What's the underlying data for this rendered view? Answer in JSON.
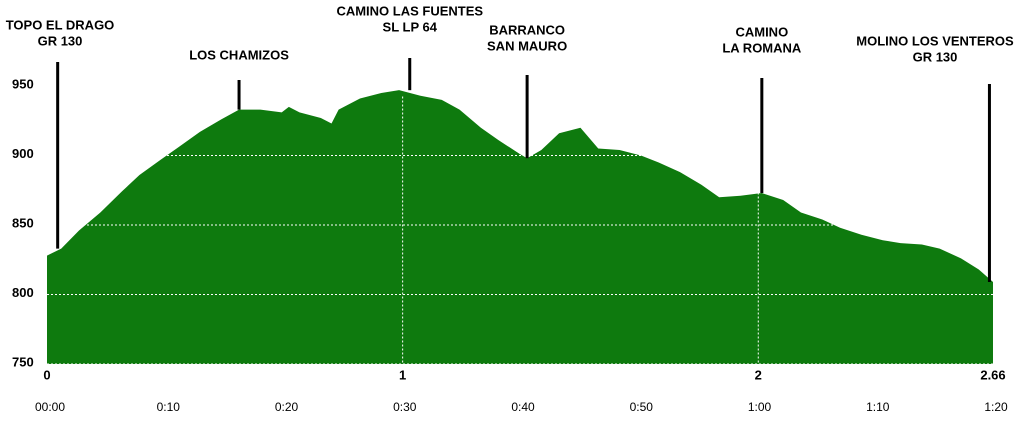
{
  "chart_data": {
    "type": "area",
    "color": "#0e7a0e",
    "x": [
      0,
      0.04,
      0.09,
      0.15,
      0.21,
      0.26,
      0.32,
      0.37,
      0.43,
      0.49,
      0.54,
      0.6,
      0.66,
      0.68,
      0.71,
      0.77,
      0.8,
      0.82,
      0.88,
      0.94,
      0.99,
      1.05,
      1.11,
      1.16,
      1.22,
      1.27,
      1.33,
      1.35,
      1.39,
      1.44,
      1.5,
      1.55,
      1.61,
      1.67,
      1.72,
      1.78,
      1.84,
      1.89,
      1.95,
      2.01,
      2.07,
      2.12,
      2.18,
      2.23,
      2.29,
      2.35,
      2.4,
      2.46,
      2.51,
      2.57,
      2.62,
      2.66
    ],
    "values": [
      828,
      833,
      846,
      859,
      874,
      886,
      897,
      906,
      917,
      926,
      933,
      933,
      931,
      935,
      931,
      927,
      923,
      933,
      941,
      945,
      947,
      943,
      940,
      933,
      920,
      911,
      901,
      898,
      904,
      916,
      920,
      905,
      904,
      900,
      895,
      888,
      879,
      870,
      871,
      873,
      868,
      859,
      854,
      848,
      843,
      839,
      837,
      836,
      833,
      826,
      818,
      809
    ],
    "xlim": [
      0,
      2.66
    ],
    "xticks": [
      0,
      1,
      2,
      2.66
    ],
    "ylim": [
      750,
      1000
    ],
    "yticks": [
      750,
      800,
      850,
      900,
      950
    ],
    "grid": true,
    "time_labels": [
      "00:00",
      "0:10",
      "0:20",
      "0:30",
      "0:40",
      "0:50",
      "1:00",
      "1:10",
      "1:20"
    ],
    "annotations": [
      {
        "x": 0.03,
        "lines": [
          "TOPO EL DRAGO",
          "GR 130"
        ]
      },
      {
        "x": 0.54,
        "lines": [
          "LOS CHAMIZOS"
        ]
      },
      {
        "x": 1.02,
        "lines": [
          "CAMINO LAS FUENTES",
          "SL LP 64"
        ]
      },
      {
        "x": 1.35,
        "lines": [
          "BARRANCO",
          "SAN MAURO"
        ]
      },
      {
        "x": 2.01,
        "lines": [
          "CAMINO",
          "LA ROMANA"
        ]
      },
      {
        "x": 2.65,
        "lines": [
          "MOLINO LOS VENTEROS",
          "GR 130"
        ]
      }
    ]
  }
}
